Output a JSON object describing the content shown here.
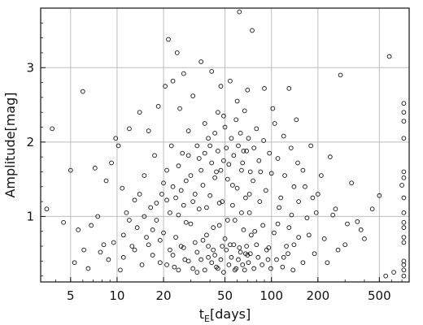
{
  "chart_data": {
    "type": "scatter",
    "title": "",
    "xlabel_main": "t",
    "xlabel_sub": "E",
    "xlabel_unit": "[days]",
    "ylabel": "Amplitude[mag]",
    "x_scale": "log",
    "xlim": [
      3.2,
      780
    ],
    "ylim": [
      0.12,
      3.8
    ],
    "x_ticks": [
      5,
      10,
      20,
      50,
      100,
      200,
      500
    ],
    "x_tick_labels": [
      "5",
      "10",
      "20",
      "50",
      "100",
      "200",
      "500"
    ],
    "y_ticks": [
      1,
      2,
      3
    ],
    "y_tick_labels": [
      "1",
      "2",
      "3"
    ],
    "grid": true,
    "marker": "open-circle",
    "series": [
      {
        "points": [
          [
            3.5,
            1.1
          ],
          [
            3.8,
            2.18
          ],
          [
            4.5,
            0.92
          ],
          [
            5.0,
            1.62
          ],
          [
            5.3,
            0.38
          ],
          [
            5.6,
            0.82
          ],
          [
            6.0,
            2.68
          ],
          [
            6.1,
            0.55
          ],
          [
            6.5,
            0.3
          ],
          [
            6.8,
            0.88
          ],
          [
            7.2,
            1.65
          ],
          [
            7.5,
            1.0
          ],
          [
            7.8,
            0.52
          ],
          [
            8.2,
            0.62
          ],
          [
            8.5,
            1.48
          ],
          [
            8.8,
            0.42
          ],
          [
            9.2,
            1.72
          ],
          [
            9.5,
            0.65
          ],
          [
            9.8,
            2.05
          ],
          [
            10.2,
            1.95
          ],
          [
            10.5,
            0.28
          ],
          [
            10.8,
            1.38
          ],
          [
            11.0,
            0.45
          ],
          [
            11.5,
            1.05
          ],
          [
            12.0,
            2.18
          ],
          [
            12.5,
            0.6
          ],
          [
            13.0,
            1.22
          ],
          [
            13.5,
            0.85
          ],
          [
            14.0,
            2.4
          ],
          [
            14.5,
            0.35
          ],
          [
            15.0,
            1.55
          ],
          [
            15.5,
            0.72
          ],
          [
            16.0,
            2.15
          ],
          [
            16.5,
            1.12
          ],
          [
            17.0,
            0.48
          ],
          [
            17.5,
            1.82
          ],
          [
            18.0,
            0.95
          ],
          [
            18.5,
            2.48
          ],
          [
            19.0,
            0.38
          ],
          [
            19.5,
            1.3
          ],
          [
            20.0,
            0.78
          ],
          [
            20.5,
            2.75
          ],
          [
            21.0,
            1.62
          ],
          [
            21.5,
            3.38
          ],
          [
            22.0,
            0.55
          ],
          [
            22.5,
            1.95
          ],
          [
            23.0,
            2.82
          ],
          [
            23.5,
            0.32
          ],
          [
            24.0,
            1.25
          ],
          [
            24.5,
            3.2
          ],
          [
            25.0,
            1.02
          ],
          [
            25.5,
            2.45
          ],
          [
            26.0,
            0.6
          ],
          [
            26.5,
            1.85
          ],
          [
            27.0,
            2.92
          ],
          [
            27.5,
            0.42
          ],
          [
            28.0,
            1.48
          ],
          [
            29.0,
            2.15
          ],
          [
            30.0,
            0.9
          ],
          [
            31.0,
            2.62
          ],
          [
            32.0,
            1.3
          ],
          [
            33.0,
            0.25
          ],
          [
            34.0,
            1.78
          ],
          [
            35.0,
            3.08
          ],
          [
            36.0,
            0.68
          ],
          [
            37.0,
            2.25
          ],
          [
            38.0,
            1.12
          ],
          [
            39.0,
            0.45
          ],
          [
            40.0,
            1.95
          ],
          [
            41.0,
            2.95
          ],
          [
            42.0,
            0.85
          ],
          [
            43.0,
            1.52
          ],
          [
            44.0,
            0.32
          ],
          [
            45.0,
            2.4
          ],
          [
            46.0,
            1.18
          ],
          [
            47.0,
            2.75
          ],
          [
            48.0,
            0.6
          ],
          [
            49.0,
            1.75
          ],
          [
            50.0,
            2.2
          ],
          [
            52.0,
            0.95
          ],
          [
            54.0,
            2.82
          ],
          [
            56.0,
            1.42
          ],
          [
            58.0,
            0.28
          ],
          [
            60.0,
            2.55
          ],
          [
            62.0,
            3.75
          ],
          [
            64.0,
            1.05
          ],
          [
            66.0,
            1.88
          ],
          [
            68.0,
            0.5
          ],
          [
            70.0,
            2.7
          ],
          [
            72.0,
            1.3
          ],
          [
            75.0,
            3.5
          ],
          [
            78.0,
            0.8
          ],
          [
            80.0,
            2.18
          ],
          [
            85.0,
            1.6
          ],
          [
            90.0,
            2.72
          ],
          [
            95.0,
            0.42
          ],
          [
            100.0,
            1.58
          ],
          [
            105.0,
            2.25
          ],
          [
            110.0,
            0.9
          ],
          [
            115.0,
            1.25
          ],
          [
            120.0,
            2.08
          ],
          [
            125.0,
            0.6
          ],
          [
            130.0,
            2.72
          ],
          [
            135.0,
            1.02
          ],
          [
            140.0,
            1.4
          ],
          [
            145.0,
            2.3
          ],
          [
            150.0,
            0.72
          ],
          [
            160.0,
            1.62
          ],
          [
            170.0,
            0.98
          ],
          [
            180.0,
            1.95
          ],
          [
            190.0,
            0.5
          ],
          [
            200.0,
            1.3
          ],
          [
            220.0,
            0.7
          ],
          [
            240.0,
            1.8
          ],
          [
            260.0,
            1.1
          ],
          [
            280.0,
            2.9
          ],
          [
            300.0,
            0.62
          ],
          [
            330.0,
            1.45
          ],
          [
            360.0,
            0.93
          ],
          [
            400.0,
            0.7
          ],
          [
            450.0,
            1.1
          ],
          [
            500.0,
            1.28
          ],
          [
            550.0,
            0.2
          ],
          [
            580.0,
            3.15
          ],
          [
            620.0,
            0.25
          ],
          [
            700.0,
            1.42
          ],
          [
            720.0,
            2.52
          ],
          [
            720.0,
            2.4
          ],
          [
            720.0,
            2.28
          ],
          [
            720.0,
            2.05
          ],
          [
            720.0,
            1.6
          ],
          [
            720.0,
            1.52
          ],
          [
            720.0,
            1.25
          ],
          [
            720.0,
            1.05
          ],
          [
            720.0,
            0.92
          ],
          [
            720.0,
            0.85
          ],
          [
            720.0,
            0.72
          ],
          [
            720.0,
            0.65
          ],
          [
            720.0,
            0.4
          ],
          [
            720.0,
            0.35
          ],
          [
            720.0,
            0.28
          ],
          [
            720.0,
            0.2
          ],
          [
            12.0,
            0.95
          ],
          [
            14.0,
            1.3
          ],
          [
            16.0,
            0.62
          ],
          [
            18.0,
            1.18
          ],
          [
            20.0,
            1.45
          ],
          [
            22.0,
            1.05
          ],
          [
            24.0,
            0.72
          ],
          [
            26.0,
            1.35
          ],
          [
            28.0,
            0.92
          ],
          [
            30.0,
            1.55
          ],
          [
            32.0,
            0.65
          ],
          [
            34.0,
            1.1
          ],
          [
            36.0,
            1.42
          ],
          [
            38.0,
            0.75
          ],
          [
            40.0,
            1.28
          ],
          [
            42.0,
            0.55
          ],
          [
            44.0,
            1.6
          ],
          [
            46.0,
            0.88
          ],
          [
            48.0,
            1.2
          ],
          [
            50.0,
            0.7
          ],
          [
            52.0,
            1.5
          ],
          [
            54.0,
            0.62
          ],
          [
            56.0,
            1.15
          ],
          [
            58.0,
            0.95
          ],
          [
            60.0,
            1.38
          ],
          [
            62.0,
            0.58
          ],
          [
            64.0,
            1.62
          ],
          [
            66.0,
            0.82
          ],
          [
            68.0,
            1.25
          ],
          [
            70.0,
            0.48
          ],
          [
            72.0,
            1.05
          ],
          [
            74.0,
            0.75
          ],
          [
            76.0,
            1.48
          ],
          [
            80.0,
            0.62
          ],
          [
            84.0,
            1.2
          ],
          [
            88.0,
            0.88
          ],
          [
            92.0,
            1.35
          ],
          [
            96.0,
            0.58
          ],
          [
            104.0,
            0.78
          ],
          [
            112.0,
            1.12
          ],
          [
            120.0,
            0.45
          ],
          [
            130.0,
            0.85
          ],
          [
            140.0,
            0.62
          ],
          [
            150.0,
            1.2
          ],
          [
            160.0,
            0.38
          ],
          [
            175.0,
            0.75
          ],
          [
            195.0,
            1.05
          ],
          [
            230.0,
            0.38
          ],
          [
            21.0,
            0.35
          ],
          [
            23.0,
            0.48
          ],
          [
            25.0,
            0.28
          ],
          [
            27.0,
            0.58
          ],
          [
            29.0,
            0.4
          ],
          [
            31.0,
            0.3
          ],
          [
            33.0,
            0.52
          ],
          [
            35.0,
            0.42
          ],
          [
            37.0,
            0.28
          ],
          [
            39.0,
            0.6
          ],
          [
            41.0,
            0.38
          ],
          [
            43.0,
            0.48
          ],
          [
            45.0,
            0.3
          ],
          [
            47.0,
            0.42
          ],
          [
            49.0,
            0.25
          ],
          [
            51.0,
            0.55
          ],
          [
            53.0,
            0.35
          ],
          [
            55.0,
            0.45
          ],
          [
            57.0,
            0.62
          ],
          [
            59.0,
            0.3
          ],
          [
            61.0,
            0.42
          ],
          [
            63.0,
            0.52
          ],
          [
            65.0,
            0.35
          ],
          [
            67.0,
            0.28
          ],
          [
            69.0,
            0.6
          ],
          [
            71.0,
            0.38
          ],
          [
            73.0,
            0.5
          ],
          [
            77.0,
            0.3
          ],
          [
            82.0,
            0.45
          ],
          [
            87.0,
            0.35
          ],
          [
            93.0,
            0.55
          ],
          [
            99.0,
            0.3
          ],
          [
            108.0,
            0.42
          ],
          [
            118.0,
            0.32
          ],
          [
            128.0,
            0.5
          ],
          [
            138.0,
            0.28
          ],
          [
            11.0,
            0.75
          ],
          [
            13.0,
            0.55
          ],
          [
            15.0,
            1.0
          ],
          [
            17.0,
            0.82
          ],
          [
            19.0,
            0.68
          ],
          [
            21.0,
            1.22
          ],
          [
            23.0,
            1.4
          ],
          [
            25.0,
            1.68
          ],
          [
            27.0,
            1.15
          ],
          [
            29.0,
            1.82
          ],
          [
            31.0,
            1.2
          ],
          [
            33.0,
            1.95
          ],
          [
            35.0,
            1.62
          ],
          [
            37.0,
            1.85
          ],
          [
            39.0,
            2.05
          ],
          [
            41.0,
            1.72
          ],
          [
            43.0,
            2.12
          ],
          [
            45.0,
            1.88
          ],
          [
            47.0,
            1.62
          ],
          [
            49.0,
            2.35
          ],
          [
            51.0,
            1.92
          ],
          [
            53.0,
            1.7
          ],
          [
            55.0,
            2.05
          ],
          [
            57.0,
            1.82
          ],
          [
            59.0,
            2.3
          ],
          [
            61.0,
            1.95
          ],
          [
            63.0,
            2.12
          ],
          [
            65.0,
            1.72
          ],
          [
            67.0,
            2.42
          ],
          [
            69.0,
            1.88
          ],
          [
            71.0,
            2.05
          ],
          [
            73.0,
            1.6
          ],
          [
            77.0,
            1.92
          ],
          [
            83.0,
            1.75
          ],
          [
            89.0,
            2.02
          ],
          [
            97.0,
            1.85
          ],
          [
            102.0,
            2.45
          ],
          [
            110.0,
            1.78
          ],
          [
            122.0,
            1.55
          ],
          [
            134.0,
            1.92
          ],
          [
            148.0,
            1.72
          ],
          [
            165.0,
            1.4
          ],
          [
            185.0,
            1.25
          ],
          [
            210.0,
            1.55
          ],
          [
            250.0,
            1.02
          ],
          [
            270.0,
            0.55
          ],
          [
            310.0,
            0.9
          ],
          [
            380.0,
            0.82
          ]
        ]
      }
    ]
  }
}
